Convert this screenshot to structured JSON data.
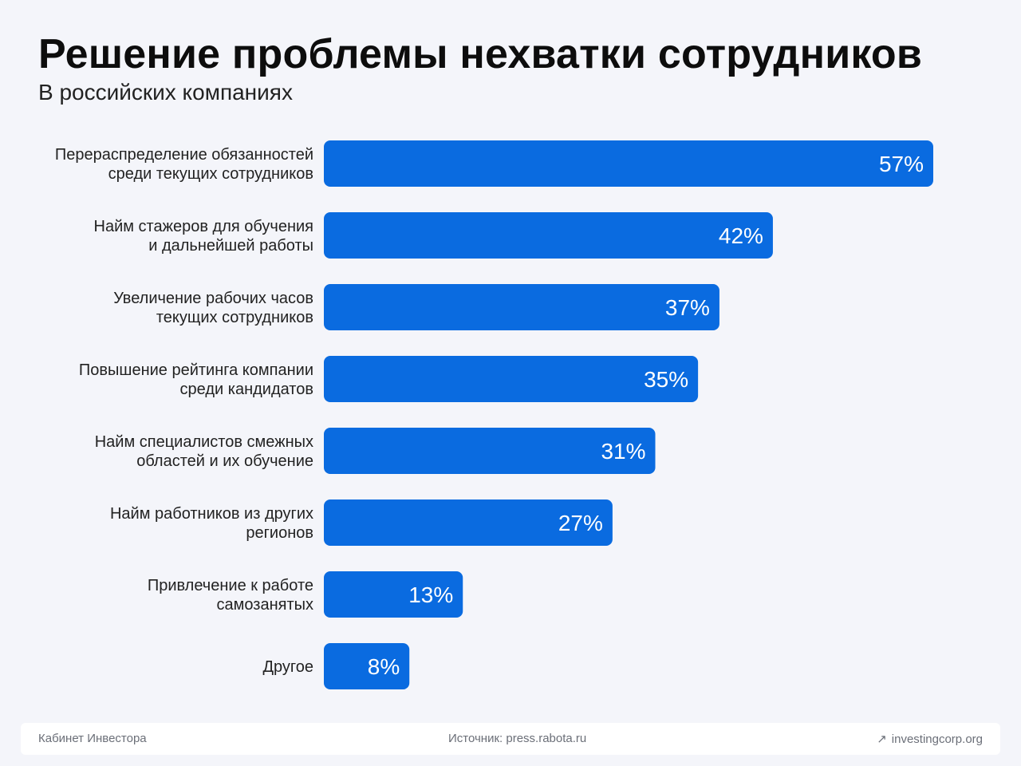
{
  "header": {
    "title": "Решение проблемы нехватки сотрудников",
    "subtitle": "В российских компаниях"
  },
  "colors": {
    "bar": "#0a6be0",
    "bar_label": "#ffffff",
    "category_text": "#222222",
    "background": "#f4f5fa"
  },
  "chart_data": {
    "type": "bar",
    "orientation": "horizontal",
    "title": "Решение проблемы нехватки сотрудников",
    "subtitle": "В российских компаниях",
    "categories": [
      [
        "Перераспределение обязанностей",
        "среди текущих сотрудников"
      ],
      [
        "Найм стажеров для обучения",
        "и дальнейшей работы"
      ],
      [
        "Увеличение рабочих часов",
        "текущих сотрудников"
      ],
      [
        "Повышение рейтинга компании",
        "среди кандидатов"
      ],
      [
        "Найм специалистов смежных",
        "областей и их обучение"
      ],
      [
        "Найм работников из других",
        "регионов"
      ],
      [
        "Привлечение к работе",
        "самозанятых"
      ],
      [
        "Другое"
      ]
    ],
    "values": [
      57,
      42,
      37,
      35,
      31,
      27,
      13,
      8
    ],
    "value_labels": [
      "57%",
      "42%",
      "37%",
      "35%",
      "31%",
      "27%",
      "13%",
      "8%"
    ],
    "unit": "%",
    "xlim": [
      0,
      57
    ],
    "grid": false,
    "legend": "none"
  },
  "footer": {
    "left": "Кабинет Инвестора",
    "center": "Источник: press.rabota.ru",
    "right": "investingcorp.org",
    "right_icon": "arrow-up-right-icon"
  }
}
